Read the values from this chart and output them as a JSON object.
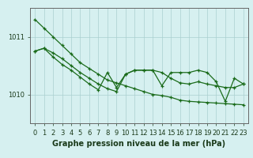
{
  "xlabel": "Graphe pression niveau de la mer (hPa)",
  "hours": [
    0,
    1,
    2,
    3,
    4,
    5,
    6,
    7,
    8,
    9,
    10,
    11,
    12,
    13,
    14,
    15,
    16,
    17,
    18,
    19,
    20,
    21,
    22,
    23
  ],
  "straight": [
    1011.3,
    1011.15,
    1011.0,
    1010.85,
    1010.7,
    1010.55,
    1010.45,
    1010.35,
    1010.25,
    1010.2,
    1010.15,
    1010.1,
    1010.05,
    1010.0,
    1009.98,
    1009.95,
    1009.9,
    1009.88,
    1009.87,
    1009.86,
    1009.85,
    1009.84,
    1009.83,
    1009.82
  ],
  "smooth": [
    1010.75,
    1010.8,
    1010.72,
    1010.62,
    1010.5,
    1010.38,
    1010.28,
    1010.18,
    1010.1,
    1010.05,
    1010.35,
    1010.42,
    1010.42,
    1010.42,
    1010.38,
    1010.28,
    1010.2,
    1010.18,
    1010.22,
    1010.18,
    1010.15,
    1010.12,
    1010.12,
    1010.18
  ],
  "jagged": [
    1010.75,
    1010.8,
    1010.65,
    1010.52,
    1010.42,
    1010.3,
    1010.18,
    1010.08,
    1010.38,
    1010.12,
    1010.35,
    1010.42,
    1010.42,
    1010.42,
    1010.15,
    1010.38,
    1010.38,
    1010.38,
    1010.42,
    1010.38,
    1010.22,
    1009.88,
    1010.28,
    1010.18
  ],
  "line_color": "#1a6b1a",
  "bg_color": "#d6f0f0",
  "grid_color": "#aacfcf",
  "axis_color": "#666666",
  "ylim_min": 1009.5,
  "ylim_max": 1011.5,
  "yticks": [
    1010,
    1011
  ],
  "line_width": 0.9,
  "marker_size": 3.0,
  "xlabel_fontsize": 7.0,
  "tick_fontsize": 6.0
}
